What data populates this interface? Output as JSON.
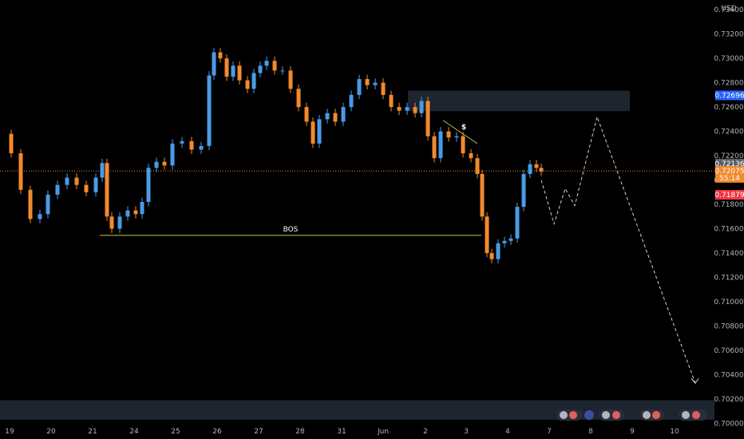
{
  "currency": "USD",
  "colors": {
    "background": "#000000",
    "bull": "#4a9be6",
    "bear": "#f28a2e",
    "zone": "#1c2530",
    "bos_line": "#cfc34a",
    "trend_line": "#d6b94a",
    "current_price": "#f28a2e",
    "tag_blue": "#2962ff",
    "tag_gray": "#5d606b",
    "tag_red": "#f23645"
  },
  "chart_data": {
    "type": "candlestick",
    "instrument_price_unit": "USD",
    "x_tick_labels": [
      "19",
      "20",
      "21",
      "24",
      "25",
      "26",
      "27",
      "28",
      "31",
      "Jun",
      "2",
      "3",
      "4",
      "7",
      "8",
      "9",
      "10"
    ],
    "y_tick_labels": [
      "0.73400",
      "0.73200",
      "0.73000",
      "0.72800",
      "0.72600",
      "0.72400",
      "0.72200",
      "0.72000",
      "0.71800",
      "0.71600",
      "0.71400",
      "0.71200",
      "0.71000",
      "0.70800",
      "0.70600",
      "0.70400",
      "0.70200",
      "0.70000"
    ],
    "ylim": [
      0.6997,
      0.7348
    ],
    "price_tags": [
      {
        "label": "0.72696",
        "value": 0.72696,
        "style": "blue"
      },
      {
        "label": "0.72136",
        "value": 0.72136,
        "style": "gray"
      },
      {
        "label": "0.72075",
        "value": 0.72075,
        "style": "orange"
      },
      {
        "label": "55:14",
        "value": 0.72018,
        "style": "orange"
      },
      {
        "label": "0.71879",
        "value": 0.71879,
        "style": "red"
      }
    ],
    "current_price": 0.72075,
    "supply_zone": {
      "x_from": "Jun 1",
      "x_to": "Jun 8",
      "y_from": 0.72566,
      "y_to": 0.72735
    },
    "demand_zone": {
      "y_from": 0.7003,
      "y_to": 0.7019
    },
    "bos": {
      "label": "BOS",
      "price": 0.71545,
      "x_from": "May 21",
      "x_to": "Jun 3"
    },
    "liquidity_mark": {
      "label": "$",
      "line_from": [
        0.7249
      ],
      "line_to": [
        0.723
      ]
    },
    "projection_path": [
      0.72,
      0.7164,
      0.7193,
      0.7179,
      0.7252,
      0.7033
    ],
    "candles_ohlc": []
  }
}
